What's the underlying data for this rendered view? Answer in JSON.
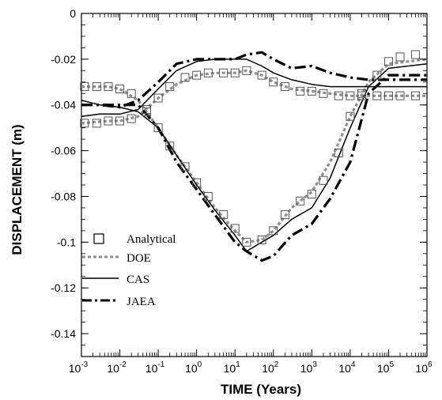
{
  "chart_data": {
    "type": "line",
    "xlabel": "TIME (Years)",
    "ylabel": "DISPLACEMENT (m)",
    "x_scale": "log",
    "xlim": [
      0.001,
      1000000
    ],
    "ylim": [
      -0.15,
      0
    ],
    "x_ticks": [
      {
        "base": "10",
        "exp": "-3"
      },
      {
        "base": "10",
        "exp": "-2"
      },
      {
        "base": "10",
        "exp": "-1"
      },
      {
        "base": "10",
        "exp": "0"
      },
      {
        "base": "10",
        "exp": "1"
      },
      {
        "base": "10",
        "exp": "2"
      },
      {
        "base": "10",
        "exp": "3"
      },
      {
        "base": "10",
        "exp": "4"
      },
      {
        "base": "10",
        "exp": "5"
      },
      {
        "base": "10",
        "exp": "6"
      }
    ],
    "y_ticks": [
      "0",
      "-0.02",
      "-0.04",
      "-0.06",
      "-0.08",
      "-0.1",
      "-0.12",
      "-0.14"
    ],
    "y_tick_values": [
      0,
      -0.02,
      -0.04,
      -0.06,
      -0.08,
      -0.1,
      -0.12,
      -0.14
    ],
    "grid": false,
    "legend_position": "lower-left",
    "legend": [
      "Analytical",
      "DOE",
      "CAS",
      "JAEA"
    ],
    "series": [
      {
        "name": "Analytical",
        "style": "square-markers",
        "x": [
          0.0012,
          0.0025,
          0.005,
          0.01,
          0.02,
          0.05,
          0.1,
          0.2,
          0.5,
          1,
          2,
          5,
          10,
          20,
          50,
          100,
          200,
          500,
          1000,
          2000,
          5000,
          10000,
          20000,
          50000,
          100000,
          200000,
          500000
        ],
        "y": [
          -0.032,
          -0.032,
          -0.032,
          -0.033,
          -0.035,
          -0.042,
          -0.05,
          -0.058,
          -0.067,
          -0.074,
          -0.08,
          -0.088,
          -0.094,
          -0.1,
          -0.099,
          -0.095,
          -0.088,
          -0.082,
          -0.079,
          -0.073,
          -0.061,
          -0.045,
          -0.035,
          -0.027,
          -0.021,
          -0.019,
          -0.018
        ]
      },
      {
        "name": "Analytical",
        "style": "square-markers",
        "x": [
          0.0012,
          0.0025,
          0.005,
          0.01,
          0.02,
          0.05,
          0.1,
          0.2,
          0.5,
          1,
          2,
          5,
          10,
          20,
          50,
          100,
          200,
          500,
          1000,
          2000,
          5000,
          10000,
          20000,
          50000,
          100000,
          200000,
          500000
        ],
        "y": [
          -0.048,
          -0.048,
          -0.047,
          -0.047,
          -0.046,
          -0.043,
          -0.037,
          -0.032,
          -0.028,
          -0.027,
          -0.026,
          -0.026,
          -0.026,
          -0.025,
          -0.027,
          -0.03,
          -0.032,
          -0.034,
          -0.034,
          -0.035,
          -0.036,
          -0.036,
          -0.036,
          -0.036,
          -0.036,
          -0.036,
          -0.036
        ]
      },
      {
        "name": "DOE",
        "style": "dashed-gray",
        "x": [
          0.001,
          0.005,
          0.01,
          0.03,
          0.1,
          0.3,
          1,
          3,
          10,
          20,
          50,
          100,
          300,
          1000,
          3000,
          10000,
          30000,
          100000,
          1000000
        ],
        "y": [
          -0.032,
          -0.032,
          -0.033,
          -0.038,
          -0.05,
          -0.062,
          -0.074,
          -0.085,
          -0.095,
          -0.1,
          -0.099,
          -0.095,
          -0.085,
          -0.078,
          -0.065,
          -0.045,
          -0.03,
          -0.022,
          -0.02
        ]
      },
      {
        "name": "DOE",
        "style": "dashed-gray",
        "x": [
          0.001,
          0.005,
          0.01,
          0.03,
          0.1,
          0.3,
          1,
          3,
          10,
          20,
          50,
          100,
          300,
          1000,
          3000,
          10000,
          30000,
          100000,
          1000000
        ],
        "y": [
          -0.048,
          -0.047,
          -0.047,
          -0.045,
          -0.037,
          -0.031,
          -0.027,
          -0.026,
          -0.026,
          -0.025,
          -0.027,
          -0.03,
          -0.033,
          -0.034,
          -0.035,
          -0.036,
          -0.036,
          -0.036,
          -0.036
        ]
      },
      {
        "name": "CAS",
        "style": "solid",
        "x": [
          0.001,
          0.003,
          0.01,
          0.03,
          0.1,
          0.3,
          1,
          3,
          10,
          20,
          50,
          100,
          300,
          1000,
          3000,
          10000,
          30000,
          100000,
          1000000
        ],
        "y": [
          -0.038,
          -0.04,
          -0.041,
          -0.043,
          -0.05,
          -0.062,
          -0.075,
          -0.086,
          -0.097,
          -0.104,
          -0.1,
          -0.097,
          -0.09,
          -0.085,
          -0.072,
          -0.05,
          -0.032,
          -0.024,
          -0.022
        ]
      },
      {
        "name": "CAS",
        "style": "solid",
        "x": [
          0.001,
          0.003,
          0.01,
          0.03,
          0.1,
          0.3,
          1,
          3,
          10,
          20,
          50,
          100,
          300,
          1000,
          3000,
          10000,
          30000,
          100000,
          1000000
        ],
        "y": [
          -0.045,
          -0.044,
          -0.044,
          -0.042,
          -0.033,
          -0.025,
          -0.021,
          -0.02,
          -0.02,
          -0.02,
          -0.023,
          -0.026,
          -0.029,
          -0.031,
          -0.032,
          -0.032,
          -0.032,
          -0.032,
          -0.032
        ]
      },
      {
        "name": "JAEA",
        "style": "dash-dot",
        "x": [
          0.001,
          0.003,
          0.01,
          0.03,
          0.1,
          0.3,
          1,
          3,
          10,
          20,
          50,
          100,
          300,
          1000,
          3000,
          10000,
          30000,
          100000,
          1000000
        ],
        "y": [
          -0.04,
          -0.04,
          -0.04,
          -0.04,
          -0.05,
          -0.065,
          -0.077,
          -0.088,
          -0.1,
          -0.104,
          -0.108,
          -0.106,
          -0.097,
          -0.092,
          -0.081,
          -0.065,
          -0.035,
          -0.027,
          -0.027
        ]
      },
      {
        "name": "JAEA",
        "style": "dash-dot",
        "x": [
          0.001,
          0.003,
          0.01,
          0.03,
          0.1,
          0.3,
          1,
          3,
          10,
          20,
          50,
          100,
          300,
          1000,
          3000,
          10000,
          30000,
          100000,
          1000000
        ],
        "y": [
          -0.04,
          -0.04,
          -0.041,
          -0.038,
          -0.03,
          -0.022,
          -0.02,
          -0.02,
          -0.02,
          -0.018,
          -0.017,
          -0.02,
          -0.024,
          -0.023,
          -0.026,
          -0.028,
          -0.029,
          -0.029,
          -0.029
        ]
      }
    ]
  }
}
